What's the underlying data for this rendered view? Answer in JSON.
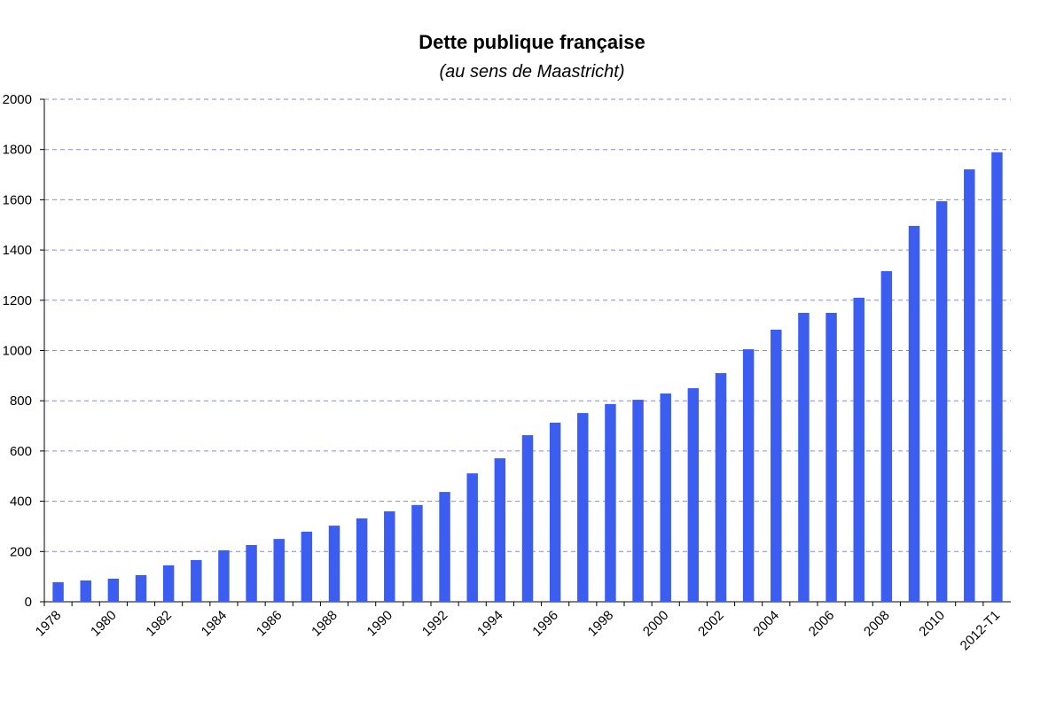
{
  "chart_data": {
    "type": "bar",
    "title": "Dette publique française",
    "subtitle": "(au sens de Maastricht)",
    "categories": [
      "1978",
      null,
      "1980",
      null,
      "1982",
      null,
      "1984",
      null,
      "1986",
      null,
      "1988",
      null,
      "1990",
      null,
      "1992",
      null,
      "1994",
      null,
      "1996",
      null,
      "1998",
      null,
      "2000",
      null,
      "2002",
      null,
      "2004",
      null,
      "2006",
      null,
      "2008",
      null,
      "2010",
      null,
      "2012-T1"
    ],
    "values": [
      78,
      85,
      92,
      106,
      145,
      166,
      205,
      226,
      250,
      279,
      303,
      332,
      360,
      385,
      437,
      511,
      571,
      663,
      713,
      751,
      787,
      804,
      829,
      850,
      910,
      1005,
      1083,
      1150,
      1150,
      1210,
      1316,
      1496,
      1594,
      1721,
      1789
    ],
    "color": "#3b5ef0",
    "ylim": [
      0,
      2000
    ],
    "yticks": [
      0,
      200,
      400,
      600,
      800,
      1000,
      1200,
      1400,
      1600,
      1800,
      2000
    ],
    "grid": true
  }
}
